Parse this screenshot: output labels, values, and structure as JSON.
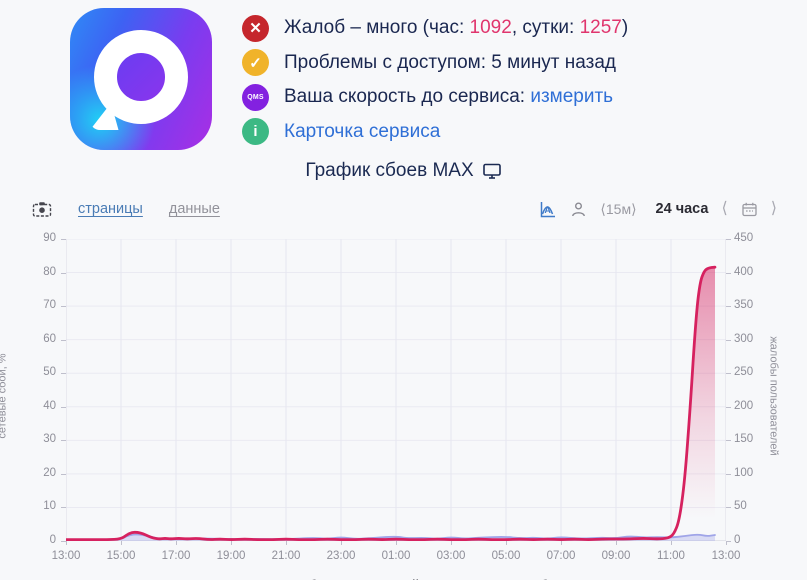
{
  "header": {
    "app_name": "MAX",
    "status_rows": [
      {
        "icon": "cross-circle-icon",
        "badge_color": "#c5262c",
        "badge_glyph": "✕",
        "segments": [
          [
            "Жалоб – много (час: ",
            "text"
          ],
          [
            "1092",
            "accent"
          ],
          [
            ", сутки: ",
            "text"
          ],
          [
            "1257",
            "accent"
          ],
          [
            ")",
            "text"
          ]
        ]
      },
      {
        "icon": "check-circle-icon",
        "badge_color": "#f0b32a",
        "badge_glyph": "✓",
        "segments": [
          [
            "Проблемы с доступом: 5 минут назад",
            "text"
          ]
        ]
      },
      {
        "icon": "qms-circle-icon",
        "badge_color": "#8321e0",
        "badge_glyph": "QMS",
        "segments": [
          [
            "Ваша скорость до сервиса: ",
            "text"
          ],
          [
            "измерить",
            "link"
          ]
        ]
      },
      {
        "icon": "info-circle-icon",
        "badge_color": "#3cb984",
        "badge_glyph": "i",
        "segments": [
          [
            "Карточка сервиса",
            "link"
          ]
        ]
      }
    ]
  },
  "title": {
    "text": "График сбоев MAX"
  },
  "toolbar": {
    "tabs": [
      {
        "label": "страницы",
        "active": true
      },
      {
        "label": "данные",
        "active": false
      }
    ],
    "interval": "⟨15м⟩",
    "range": "24 часа",
    "prev": "⟨",
    "next": "⟩"
  },
  "chart_data": {
    "type": "line",
    "title": "График сбоев MAX",
    "grid": true,
    "legend_position": "bottom",
    "x_ticks": [
      "13:00",
      "15:00",
      "17:00",
      "19:00",
      "21:00",
      "23:00",
      "01:00",
      "03:00",
      "05:00",
      "07:00",
      "09:00",
      "11:00",
      "13:00"
    ],
    "x_range_hours": [
      0,
      24
    ],
    "left_axis": {
      "label": "сетевые сбои, %",
      "range": [
        0,
        90
      ],
      "ticks": [
        0,
        10,
        20,
        30,
        40,
        50,
        60,
        70,
        80,
        90
      ]
    },
    "right_axis": {
      "label": "жалобы пользователей",
      "range": [
        0,
        450
      ],
      "ticks": [
        0,
        50,
        100,
        150,
        200,
        250,
        300,
        350,
        400,
        450
      ]
    },
    "series": [
      {
        "name": "сетевые сбои",
        "axis": "left",
        "color": "#a0a5e8",
        "fill": "rgba(160,165,232,0.35)",
        "points": [
          [
            0,
            0.4
          ],
          [
            1,
            0.4
          ],
          [
            2,
            0.5
          ],
          [
            2.3,
            1.8
          ],
          [
            2.6,
            2.0
          ],
          [
            3,
            1.5
          ],
          [
            3.4,
            0.6
          ],
          [
            4,
            0.5
          ],
          [
            5,
            0.8
          ],
          [
            6,
            0.5
          ],
          [
            7,
            0.6
          ],
          [
            8,
            0.5
          ],
          [
            9,
            1.0
          ],
          [
            9.5,
            0.6
          ],
          [
            10,
            1.2
          ],
          [
            10.5,
            0.6
          ],
          [
            11,
            0.8
          ],
          [
            12,
            1.4
          ],
          [
            12.4,
            0.8
          ],
          [
            13,
            1.0
          ],
          [
            13.5,
            0.6
          ],
          [
            14,
            1.2
          ],
          [
            14.5,
            0.7
          ],
          [
            15,
            1.0
          ],
          [
            16,
            1.3
          ],
          [
            16.5,
            0.8
          ],
          [
            17,
            1.0
          ],
          [
            17.5,
            0.7
          ],
          [
            18,
            1.2
          ],
          [
            18.7,
            0.7
          ],
          [
            19.5,
            1.0
          ],
          [
            20,
            0.8
          ],
          [
            20.5,
            1.5
          ],
          [
            21,
            1.0
          ],
          [
            21.5,
            1.2
          ],
          [
            22,
            1.0
          ],
          [
            22.5,
            1.5
          ],
          [
            23,
            2.0
          ],
          [
            23.3,
            1.4
          ],
          [
            23.6,
            1.8
          ]
        ]
      },
      {
        "name": "жалобы пользователей",
        "axis": "right",
        "color": "#d6215f",
        "fill": "gradient-pink",
        "points": [
          [
            0,
            2
          ],
          [
            0.75,
            2
          ],
          [
            1.5,
            2
          ],
          [
            2,
            3
          ],
          [
            2.2,
            9
          ],
          [
            2.4,
            13
          ],
          [
            2.6,
            13
          ],
          [
            2.8,
            11
          ],
          [
            3,
            7
          ],
          [
            3.2,
            4
          ],
          [
            3.4,
            3
          ],
          [
            3.6,
            4
          ],
          [
            3.8,
            3
          ],
          [
            4.1,
            4
          ],
          [
            4.4,
            3
          ],
          [
            4.8,
            4
          ],
          [
            5.2,
            2
          ],
          [
            5.6,
            3
          ],
          [
            6,
            2
          ],
          [
            6.5,
            3
          ],
          [
            7,
            2
          ],
          [
            7.5,
            2
          ],
          [
            8,
            3
          ],
          [
            8.5,
            2
          ],
          [
            9,
            2
          ],
          [
            9.5,
            3
          ],
          [
            10,
            2
          ],
          [
            10.5,
            2
          ],
          [
            11,
            3
          ],
          [
            11.5,
            2
          ],
          [
            12,
            3
          ],
          [
            12.5,
            2
          ],
          [
            13,
            2
          ],
          [
            13.5,
            3
          ],
          [
            14,
            2
          ],
          [
            14.5,
            2
          ],
          [
            15,
            3
          ],
          [
            15.5,
            2
          ],
          [
            16,
            2
          ],
          [
            16.5,
            3
          ],
          [
            17,
            2
          ],
          [
            17.5,
            3
          ],
          [
            18,
            2
          ],
          [
            18.5,
            3
          ],
          [
            19,
            2
          ],
          [
            19.5,
            3
          ],
          [
            20,
            3
          ],
          [
            20.5,
            3
          ],
          [
            21,
            4
          ],
          [
            21.5,
            3
          ],
          [
            21.9,
            4
          ],
          [
            22.1,
            10
          ],
          [
            22.3,
            30
          ],
          [
            22.5,
            90
          ],
          [
            22.7,
            200
          ],
          [
            22.9,
            330
          ],
          [
            23.05,
            385
          ],
          [
            23.2,
            402
          ],
          [
            23.35,
            407
          ],
          [
            23.6,
            408
          ]
        ]
      }
    ]
  }
}
